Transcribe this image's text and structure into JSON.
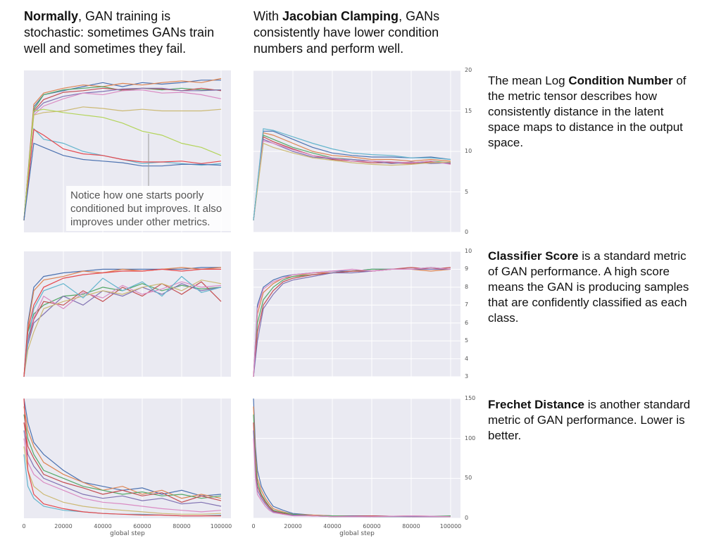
{
  "header_left": {
    "bold": "Normally",
    "rest": ", GAN training is stochastic: sometimes GANs train well and sometimes they fail."
  },
  "header_right": {
    "pre": "With ",
    "bold": "Jacobian Clamping",
    "rest": ", GANs consistently have lower condition numbers and perform well."
  },
  "descriptions": [
    {
      "bold": "",
      "pre": "The mean Log ",
      "bold_mid": "Condition Number",
      "rest": " of the metric tensor describes  how consistently distance in the latent space maps to distance in the output space."
    },
    {
      "bold": "Classifier Score",
      "rest": " is a standard metric of GAN performance. A high score means the GAN is producing samples that are confidently classified as each class."
    },
    {
      "bold": "Frechet Distance",
      "rest": " is another standard metric of GAN performance. Lower is better."
    }
  ],
  "annotation": "Notice how one starts poorly conditioned but improves. It also improves under other metrics.",
  "colors": [
    "#4c72b0",
    "#dd8452",
    "#55a868",
    "#c44e52",
    "#8172b2",
    "#da8bc3",
    "#ccb974",
    "#64b5cd",
    "#e5484d",
    "#b3d45a"
  ],
  "chart_data": [
    {
      "type": "line",
      "id": "cond-normal",
      "ylim": [
        0,
        20
      ],
      "x": [
        0,
        5000,
        10000,
        20000,
        30000,
        40000,
        50000,
        60000,
        70000,
        80000,
        90000,
        100000
      ],
      "series": [
        {
          "values": [
            1.5,
            15.5,
            17,
            17.5,
            18,
            18.5,
            18,
            18.5,
            18.3,
            18.5,
            18.8,
            18.8
          ]
        },
        {
          "values": [
            1.5,
            15.8,
            17.2,
            17.8,
            18.2,
            18,
            18.4,
            18.2,
            18.5,
            18.7,
            18.5,
            19
          ]
        },
        {
          "values": [
            1.5,
            15.2,
            17,
            17.6,
            17.8,
            18,
            17.5,
            17.8,
            17.6,
            17.8,
            17.6,
            17.6
          ]
        },
        {
          "values": [
            1.5,
            15,
            16.4,
            17.3,
            17.5,
            17.8,
            17.6,
            17.8,
            17.7,
            17.5,
            17.8,
            17.5
          ]
        },
        {
          "values": [
            1.5,
            14.8,
            16,
            16.8,
            17.2,
            17.4,
            17.7,
            17.8,
            17.8,
            17.5,
            17.5,
            17.6
          ]
        },
        {
          "values": [
            1.5,
            14.5,
            15.6,
            16.5,
            17.2,
            17,
            17.5,
            17.6,
            17.2,
            17.3,
            17,
            16.5
          ]
        },
        {
          "values": [
            1.5,
            14.5,
            14.8,
            15,
            15.5,
            15.3,
            15,
            15.2,
            15,
            15,
            15,
            15.2
          ]
        },
        {
          "values": [
            1.5,
            12.8,
            11.5,
            11,
            10,
            9.5,
            9,
            8.5,
            8.7,
            8.5,
            8.3,
            8.5
          ]
        },
        {
          "values": [
            1.5,
            12.7,
            12,
            10.3,
            9.7,
            9.5,
            9,
            8.7,
            8.7,
            8.8,
            8.5,
            8.8
          ]
        },
        {
          "values": [
            1.5,
            15,
            15.2,
            14.8,
            14.5,
            14.2,
            13.5,
            12.5,
            12,
            11,
            10.5,
            9.5
          ]
        },
        {
          "values": [
            1.5,
            11,
            10.5,
            9.5,
            9,
            8.8,
            8.6,
            8.2,
            8.2,
            8.4,
            8.4,
            8.3
          ]
        }
      ]
    },
    {
      "type": "line",
      "id": "cond-jc",
      "ylim": [
        0,
        20
      ],
      "yticks": [
        0,
        5,
        10,
        15,
        20
      ],
      "x": [
        0,
        5000,
        10000,
        20000,
        30000,
        40000,
        50000,
        60000,
        70000,
        80000,
        90000,
        100000
      ],
      "series": [
        {
          "values": [
            1.5,
            12.5,
            12.5,
            11.5,
            10.5,
            9.8,
            9.5,
            9.3,
            9.3,
            9.2,
            9.3,
            9
          ]
        },
        {
          "values": [
            1.5,
            12.3,
            12,
            11,
            10,
            9.5,
            9.3,
            9,
            9,
            8.8,
            9,
            8.8
          ]
        },
        {
          "values": [
            1.5,
            12,
            11.5,
            10.5,
            9.8,
            9.2,
            9,
            8.8,
            8.7,
            8.6,
            8.8,
            8.6
          ]
        },
        {
          "values": [
            1.5,
            11.8,
            11.2,
            10.3,
            9.5,
            9,
            8.8,
            8.6,
            8.6,
            8.5,
            8.7,
            8.5
          ]
        },
        {
          "values": [
            1.5,
            11.5,
            11,
            10,
            9.3,
            9.1,
            9,
            8.8,
            8.5,
            8.7,
            8.5,
            8.6
          ]
        },
        {
          "values": [
            1.5,
            11.3,
            11,
            10.2,
            9.5,
            9.2,
            8.8,
            8.8,
            8.7,
            8.6,
            8.8,
            8.4
          ]
        },
        {
          "values": [
            1.5,
            11,
            10.5,
            9.8,
            9.2,
            8.9,
            8.6,
            8.4,
            8.3,
            8.4,
            8.6,
            8.7
          ]
        },
        {
          "values": [
            1.5,
            12.8,
            12.6,
            11.8,
            11,
            10.3,
            9.8,
            9.6,
            9.5,
            9.2,
            9.2,
            9
          ]
        }
      ]
    },
    {
      "type": "line",
      "id": "cs-normal",
      "ylim": [
        3,
        10
      ],
      "x": [
        0,
        2000,
        5000,
        10000,
        20000,
        30000,
        40000,
        50000,
        60000,
        70000,
        80000,
        90000,
        100000
      ],
      "series": [
        {
          "values": [
            3,
            6,
            8,
            8.6,
            8.8,
            8.9,
            9,
            9,
            9,
            9,
            9,
            9.1,
            9.1
          ]
        },
        {
          "values": [
            3,
            5.8,
            7.8,
            8.4,
            8.6,
            8.9,
            8.8,
            9,
            8.9,
            9,
            9.1,
            9,
            9.1
          ]
        },
        {
          "values": [
            3,
            5.5,
            6.5,
            7,
            7.5,
            7.6,
            8,
            7.8,
            8.2,
            7.8,
            8.1,
            7.9,
            8
          ]
        },
        {
          "values": [
            3,
            5,
            6.2,
            7.2,
            7,
            7.8,
            7.2,
            8,
            7.5,
            8.2,
            7.6,
            8.3,
            7.2
          ]
        },
        {
          "values": [
            3,
            4.8,
            6,
            6.5,
            7.5,
            7,
            7.8,
            7.5,
            8,
            7.6,
            8.2,
            7.8,
            8
          ]
        },
        {
          "values": [
            3,
            5.2,
            6.3,
            7.5,
            6.8,
            7.7,
            7.4,
            8.1,
            7.6,
            7.9,
            8.3,
            8,
            8.1
          ]
        },
        {
          "values": [
            3,
            4.5,
            5.5,
            6.8,
            7.2,
            7.5,
            7.8,
            7.6,
            8,
            8.2,
            7.8,
            8.4,
            8.2
          ]
        },
        {
          "values": [
            3,
            5,
            6.8,
            7.8,
            8.2,
            7.4,
            8.5,
            7.8,
            8.3,
            7.5,
            8.6,
            7.7,
            8
          ]
        },
        {
          "values": [
            3,
            5.6,
            7,
            8,
            8.5,
            8.7,
            8.8,
            8.9,
            8.9,
            9,
            8.9,
            9,
            9
          ]
        }
      ]
    },
    {
      "type": "line",
      "id": "cs-jc",
      "ylim": [
        3,
        10
      ],
      "yticks": [
        3,
        4,
        5,
        6,
        7,
        8,
        9,
        10
      ],
      "x": [
        0,
        2000,
        5000,
        10000,
        15000,
        20000,
        30000,
        40000,
        50000,
        60000,
        70000,
        80000,
        90000,
        100000
      ],
      "series": [
        {
          "values": [
            3,
            7,
            8,
            8.4,
            8.6,
            8.7,
            8.8,
            8.9,
            8.9,
            9,
            9,
            9,
            9,
            9
          ]
        },
        {
          "values": [
            3,
            6.5,
            7.7,
            8.2,
            8.5,
            8.6,
            8.8,
            8.8,
            8.9,
            8.9,
            9,
            9,
            8.9,
            9
          ]
        },
        {
          "values": [
            3,
            6,
            7.3,
            8,
            8.4,
            8.6,
            8.7,
            8.8,
            8.9,
            9,
            9,
            9,
            9.1,
            9
          ]
        },
        {
          "values": [
            3,
            5.5,
            7,
            7.8,
            8.3,
            8.5,
            8.7,
            8.8,
            8.9,
            8.9,
            9,
            9.1,
            9,
            9.1
          ]
        },
        {
          "values": [
            3,
            5,
            6.8,
            7.6,
            8.2,
            8.4,
            8.6,
            8.8,
            8.8,
            8.9,
            9,
            9,
            9,
            9
          ]
        },
        {
          "values": [
            3,
            6.8,
            7.9,
            8.3,
            8.5,
            8.7,
            8.8,
            8.9,
            9,
            8.9,
            9,
            9,
            9.1,
            9
          ]
        }
      ]
    },
    {
      "type": "line",
      "id": "fd-normal",
      "ylim": [
        0,
        150
      ],
      "xticks": [
        0,
        20000,
        40000,
        60000,
        80000,
        100000
      ],
      "xlabel": "global step",
      "x": [
        0,
        2000,
        5000,
        10000,
        20000,
        30000,
        40000,
        50000,
        60000,
        70000,
        80000,
        90000,
        100000
      ],
      "series": [
        {
          "values": [
            150,
            120,
            95,
            80,
            60,
            45,
            40,
            35,
            38,
            30,
            35,
            28,
            30
          ]
        },
        {
          "values": [
            140,
            110,
            90,
            70,
            55,
            45,
            35,
            40,
            30,
            35,
            25,
            30,
            25
          ]
        },
        {
          "values": [
            130,
            100,
            80,
            60,
            50,
            40,
            35,
            30,
            33,
            28,
            30,
            25,
            28
          ]
        },
        {
          "values": [
            120,
            90,
            75,
            55,
            45,
            38,
            30,
            35,
            28,
            32,
            20,
            28,
            22
          ]
        },
        {
          "values": [
            110,
            80,
            65,
            50,
            40,
            30,
            25,
            28,
            22,
            25,
            18,
            20,
            15
          ]
        },
        {
          "values": [
            100,
            70,
            55,
            45,
            35,
            25,
            20,
            18,
            15,
            12,
            10,
            8,
            10
          ]
        },
        {
          "values": [
            90,
            60,
            40,
            30,
            20,
            15,
            12,
            10,
            8,
            6,
            5,
            5,
            6
          ]
        },
        {
          "values": [
            80,
            40,
            25,
            15,
            10,
            8,
            6,
            5,
            5,
            4,
            3,
            3,
            4
          ]
        },
        {
          "values": [
            150,
            60,
            30,
            18,
            12,
            8,
            6,
            5,
            4,
            4,
            3,
            3,
            3
          ]
        }
      ]
    },
    {
      "type": "line",
      "id": "fd-jc",
      "ylim": [
        0,
        150
      ],
      "yticks": [
        0,
        50,
        100,
        150
      ],
      "xticks": [
        0,
        20000,
        40000,
        60000,
        80000,
        100000
      ],
      "xlabel": "global step",
      "x": [
        0,
        1000,
        2000,
        4000,
        6000,
        8000,
        10000,
        15000,
        20000,
        30000,
        40000,
        60000,
        80000,
        100000
      ],
      "series": [
        {
          "values": [
            150,
            90,
            60,
            40,
            30,
            22,
            15,
            10,
            6,
            4,
            3,
            3,
            2,
            2
          ]
        },
        {
          "values": [
            140,
            80,
            50,
            35,
            25,
            18,
            12,
            8,
            5,
            4,
            3,
            2,
            3,
            2
          ]
        },
        {
          "values": [
            130,
            70,
            45,
            30,
            22,
            15,
            10,
            7,
            5,
            3,
            3,
            2,
            2,
            3
          ]
        },
        {
          "values": [
            120,
            60,
            40,
            28,
            20,
            14,
            9,
            6,
            4,
            3,
            2,
            3,
            2,
            2
          ]
        },
        {
          "values": [
            110,
            55,
            35,
            25,
            18,
            12,
            8,
            5,
            4,
            3,
            2,
            2,
            2,
            2
          ]
        },
        {
          "values": [
            100,
            50,
            30,
            22,
            15,
            10,
            7,
            5,
            3,
            3,
            2,
            2,
            3,
            2
          ]
        }
      ]
    }
  ]
}
